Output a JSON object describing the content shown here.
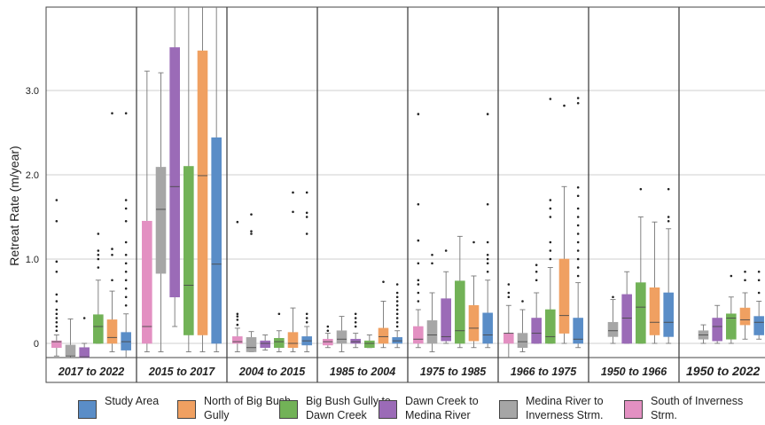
{
  "chart_data": {
    "type": "box",
    "ylabel": "Retreat Rate (m/year)",
    "ylim": [
      -0.2,
      4.0
    ],
    "yticks": [
      "0",
      "1.0",
      "2.0",
      "3.0"
    ],
    "grid": true,
    "legend_position": "bottom",
    "periods": [
      "2017 to 2022",
      "2015 to 2017",
      "2004 to 2015",
      "1985 to 2004",
      "1975 to 1985",
      "1966 to 1975",
      "1950 to 1966",
      "1950 to 2022"
    ],
    "series_order_left_to_right": [
      "South of Inverness Strm.",
      "Medina River to Inverness Strm.",
      "Dawn Creek to Medina River",
      "Big Bush Gully to Dawn Creek",
      "North of Big Bush Gully",
      "Study Area"
    ],
    "series": [
      {
        "name": "South of Inverness Strm.",
        "color": "#e390c2",
        "boxes": [
          {
            "period": "2017 to 2022",
            "min": -0.15,
            "q1": -0.05,
            "median": 0.02,
            "q3": 0.03,
            "max": 0.1,
            "outliers": [
              0.15,
              0.2,
              0.25,
              0.3,
              0.35,
              0.4,
              0.5,
              0.58,
              0.85,
              0.97,
              1.45,
              1.7
            ]
          },
          {
            "period": "2015 to 2017",
            "min": -0.1,
            "q1": 0.0,
            "median": 0.2,
            "q3": 1.45,
            "max": 3.23,
            "outliers": []
          },
          {
            "period": "2004 to 2015",
            "min": -0.1,
            "q1": 0.0,
            "median": 0.02,
            "q3": 0.08,
            "max": 0.18,
            "outliers": [
              0.22,
              0.28,
              0.32,
              0.35,
              1.44
            ]
          },
          {
            "period": "1985 to 2004",
            "min": -0.05,
            "q1": -0.02,
            "median": 0.02,
            "q3": 0.05,
            "max": 0.12,
            "outliers": [
              0.15,
              0.2
            ]
          },
          {
            "period": "1975 to 1985",
            "min": -0.05,
            "q1": 0.0,
            "median": 0.05,
            "q3": 0.2,
            "max": 0.4,
            "outliers": [
              0.5,
              0.6,
              0.7,
              0.75,
              0.95,
              1.22,
              1.65,
              2.72
            ]
          },
          {
            "period": "1966 to 1975",
            "min": -0.2,
            "q1": 0.0,
            "median": 0.12,
            "q3": 0.12,
            "max": 0.45,
            "outliers": [
              0.55,
              0.6,
              0.7
            ]
          }
        ]
      },
      {
        "name": "Medina River to Inverness Strm.",
        "color": "#a6a6a6",
        "boxes": [
          {
            "period": "2017 to 2022",
            "min": -0.2,
            "q1": -0.15,
            "median": -0.15,
            "q3": -0.02,
            "max": 0.29,
            "outliers": []
          },
          {
            "period": "2015 to 2017",
            "min": -0.1,
            "q1": 0.83,
            "median": 1.59,
            "q3": 2.09,
            "max": 3.21,
            "outliers": []
          },
          {
            "period": "2004 to 2015",
            "min": -0.1,
            "q1": -0.1,
            "median": -0.05,
            "q3": 0.07,
            "max": 0.14,
            "outliers": [
              1.3,
              1.33,
              1.53
            ]
          },
          {
            "period": "1985 to 2004",
            "min": -0.1,
            "q1": 0.0,
            "median": 0.05,
            "q3": 0.15,
            "max": 0.32,
            "outliers": []
          },
          {
            "period": "1975 to 1985",
            "min": -0.1,
            "q1": 0.0,
            "median": 0.1,
            "q3": 0.27,
            "max": 0.6,
            "outliers": [
              0.95,
              1.05
            ]
          },
          {
            "period": "1966 to 1975",
            "min": -0.1,
            "q1": -0.05,
            "median": 0.02,
            "q3": 0.12,
            "max": 0.4,
            "outliers": [
              0.5
            ]
          },
          {
            "period": "1950 to 1966",
            "min": 0.0,
            "q1": 0.08,
            "median": 0.15,
            "q3": 0.25,
            "max": 0.52,
            "outliers": [
              0.55
            ]
          },
          {
            "period": "1950 to 2022",
            "min": 0.0,
            "q1": 0.05,
            "median": 0.1,
            "q3": 0.15,
            "max": 0.22,
            "outliers": []
          }
        ]
      },
      {
        "name": "Dawn Creek to Medina River",
        "color": "#9b6bb7",
        "boxes": [
          {
            "period": "2017 to 2022",
            "min": -0.2,
            "q1": -0.18,
            "median": -0.16,
            "q3": -0.05,
            "max": 0.0,
            "outliers": [
              0.3
            ]
          },
          {
            "period": "2015 to 2017",
            "min": 0.2,
            "q1": 0.55,
            "median": 1.86,
            "q3": 3.51,
            "max": 4.0,
            "outliers": []
          },
          {
            "period": "2004 to 2015",
            "min": -0.08,
            "q1": -0.05,
            "median": 0.0,
            "q3": 0.03,
            "max": 0.1,
            "outliers": []
          },
          {
            "period": "1985 to 2004",
            "min": -0.05,
            "q1": 0.0,
            "median": 0.02,
            "q3": 0.05,
            "max": 0.12,
            "outliers": [
              0.2,
              0.25,
              0.3,
              0.35
            ]
          },
          {
            "period": "1975 to 1985",
            "min": 0.0,
            "q1": 0.03,
            "median": 0.08,
            "q3": 0.53,
            "max": 0.85,
            "outliers": [
              1.1
            ]
          },
          {
            "period": "1966 to 1975",
            "min": 0.0,
            "q1": 0.0,
            "median": 0.12,
            "q3": 0.3,
            "max": 0.6,
            "outliers": [
              0.75,
              0.85,
              0.93
            ]
          },
          {
            "period": "1950 to 1966",
            "min": 0.0,
            "q1": 0.0,
            "median": 0.3,
            "q3": 0.58,
            "max": 0.85,
            "outliers": []
          },
          {
            "period": "1950 to 2022",
            "min": 0.0,
            "q1": 0.03,
            "median": 0.2,
            "q3": 0.3,
            "max": 0.45,
            "outliers": []
          }
        ]
      },
      {
        "name": "Big Bush Gully to Dawn Creek",
        "color": "#72b257",
        "boxes": [
          {
            "period": "2017 to 2022",
            "min": 0.0,
            "q1": 0.0,
            "median": 0.2,
            "q3": 0.34,
            "max": 0.75,
            "outliers": [
              0.9,
              1.0,
              1.05,
              1.1,
              1.3
            ]
          },
          {
            "period": "2015 to 2017",
            "min": -0.1,
            "q1": 0.1,
            "median": 0.69,
            "q3": 2.1,
            "max": 4.0,
            "outliers": []
          },
          {
            "period": "2004 to 2015",
            "min": -0.1,
            "q1": -0.05,
            "median": 0.02,
            "q3": 0.06,
            "max": 0.15,
            "outliers": [
              0.35
            ]
          },
          {
            "period": "1985 to 2004",
            "min": -0.05,
            "q1": -0.05,
            "median": 0.0,
            "q3": 0.03,
            "max": 0.1,
            "outliers": []
          },
          {
            "period": "1975 to 1985",
            "min": -0.05,
            "q1": 0.0,
            "median": 0.15,
            "q3": 0.74,
            "max": 1.27,
            "outliers": []
          },
          {
            "period": "1966 to 1975",
            "min": 0.0,
            "q1": 0.0,
            "median": 0.08,
            "q3": 0.4,
            "max": 0.9,
            "outliers": [
              1.0,
              1.1,
              1.2,
              1.5,
              1.6,
              1.7,
              2.9
            ]
          },
          {
            "period": "1950 to 1966",
            "min": 0.0,
            "q1": 0.0,
            "median": 0.43,
            "q3": 0.72,
            "max": 1.5,
            "outliers": [
              1.83
            ]
          },
          {
            "period": "1950 to 2022",
            "min": 0.0,
            "q1": 0.05,
            "median": 0.3,
            "q3": 0.35,
            "max": 0.55,
            "outliers": [
              0.8
            ]
          }
        ]
      },
      {
        "name": "North of Big Bush Gully",
        "color": "#f0a061",
        "boxes": [
          {
            "period": "2017 to 2022",
            "min": -0.1,
            "q1": 0.0,
            "median": 0.07,
            "q3": 0.28,
            "max": 0.62,
            "outliers": [
              0.75,
              1.05,
              1.12,
              2.73
            ]
          },
          {
            "period": "2015 to 2017",
            "min": -0.1,
            "q1": 0.1,
            "median": 1.99,
            "q3": 3.47,
            "max": 4.0,
            "outliers": []
          },
          {
            "period": "2004 to 2015",
            "min": -0.1,
            "q1": -0.05,
            "median": 0.0,
            "q3": 0.13,
            "max": 0.42,
            "outliers": [
              1.56,
              1.79
            ]
          },
          {
            "period": "1985 to 2004",
            "min": -0.05,
            "q1": 0.0,
            "median": 0.08,
            "q3": 0.18,
            "max": 0.5,
            "outliers": [
              0.73
            ]
          },
          {
            "period": "1975 to 1985",
            "min": -0.05,
            "q1": 0.03,
            "median": 0.18,
            "q3": 0.45,
            "max": 0.8,
            "outliers": [
              1.2
            ]
          },
          {
            "period": "1966 to 1975",
            "min": 0.0,
            "q1": 0.12,
            "median": 0.33,
            "q3": 1.0,
            "max": 1.86,
            "outliers": [
              2.82
            ]
          },
          {
            "period": "1950 to 1966",
            "min": 0.0,
            "q1": 0.1,
            "median": 0.25,
            "q3": 0.66,
            "max": 1.44,
            "outliers": []
          },
          {
            "period": "1950 to 2022",
            "min": 0.05,
            "q1": 0.22,
            "median": 0.28,
            "q3": 0.42,
            "max": 0.6,
            "outliers": [
              0.75,
              0.85
            ]
          }
        ]
      },
      {
        "name": "Study Area",
        "color": "#5a8dc7",
        "boxes": [
          {
            "period": "2017 to 2022",
            "min": -0.2,
            "q1": -0.08,
            "median": 0.02,
            "q3": 0.13,
            "max": 0.35,
            "outliers": [
              0.45,
              0.55,
              0.65,
              0.75,
              0.85,
              0.95,
              1.05,
              1.2,
              1.45,
              1.6,
              1.7,
              2.73
            ]
          },
          {
            "period": "2015 to 2017",
            "min": -0.1,
            "q1": 0.0,
            "median": 0.94,
            "q3": 2.44,
            "max": 4.0,
            "outliers": []
          },
          {
            "period": "2004 to 2015",
            "min": -0.1,
            "q1": -0.02,
            "median": 0.03,
            "q3": 0.08,
            "max": 0.2,
            "outliers": [
              0.25,
              0.3,
              0.35,
              1.3,
              1.5,
              1.55,
              1.79
            ]
          },
          {
            "period": "1985 to 2004",
            "min": -0.05,
            "q1": 0.0,
            "median": 0.03,
            "q3": 0.07,
            "max": 0.15,
            "outliers": [
              0.2,
              0.25,
              0.3,
              0.35,
              0.4,
              0.45,
              0.5,
              0.55,
              0.6,
              0.7
            ]
          },
          {
            "period": "1975 to 1985",
            "min": -0.05,
            "q1": 0.0,
            "median": 0.1,
            "q3": 0.36,
            "max": 0.75,
            "outliers": [
              0.85,
              0.95,
              1.0,
              1.05,
              1.2,
              1.65,
              2.72
            ]
          },
          {
            "period": "1966 to 1975",
            "min": -0.05,
            "q1": 0.0,
            "median": 0.05,
            "q3": 0.3,
            "max": 0.72,
            "outliers": [
              0.8,
              0.9,
              1.0,
              1.1,
              1.2,
              1.3,
              1.4,
              1.5,
              1.6,
              1.75,
              1.85,
              2.85,
              2.91
            ]
          },
          {
            "period": "1950 to 1966",
            "min": 0.0,
            "q1": 0.08,
            "median": 0.25,
            "q3": 0.6,
            "max": 1.36,
            "outliers": [
              1.45,
              1.5,
              1.83
            ]
          },
          {
            "period": "1950 to 2022",
            "min": 0.05,
            "q1": 0.1,
            "median": 0.25,
            "q3": 0.32,
            "max": 0.5,
            "outliers": [
              0.6,
              0.75,
              0.85
            ]
          }
        ]
      }
    ]
  },
  "legend": [
    {
      "label": "Study Area",
      "color": "#5a8dc7"
    },
    {
      "label": "North of Big Bush Gully",
      "color": "#f0a061"
    },
    {
      "label": "Big Bush Gully to Dawn Creek",
      "color": "#72b257"
    },
    {
      "label": "Dawn Creek to Medina River",
      "color": "#9b6bb7"
    },
    {
      "label": "Medina River to Inverness Strm.",
      "color": "#a6a6a6"
    },
    {
      "label": "South of Inverness Strm.",
      "color": "#e390c2"
    }
  ]
}
